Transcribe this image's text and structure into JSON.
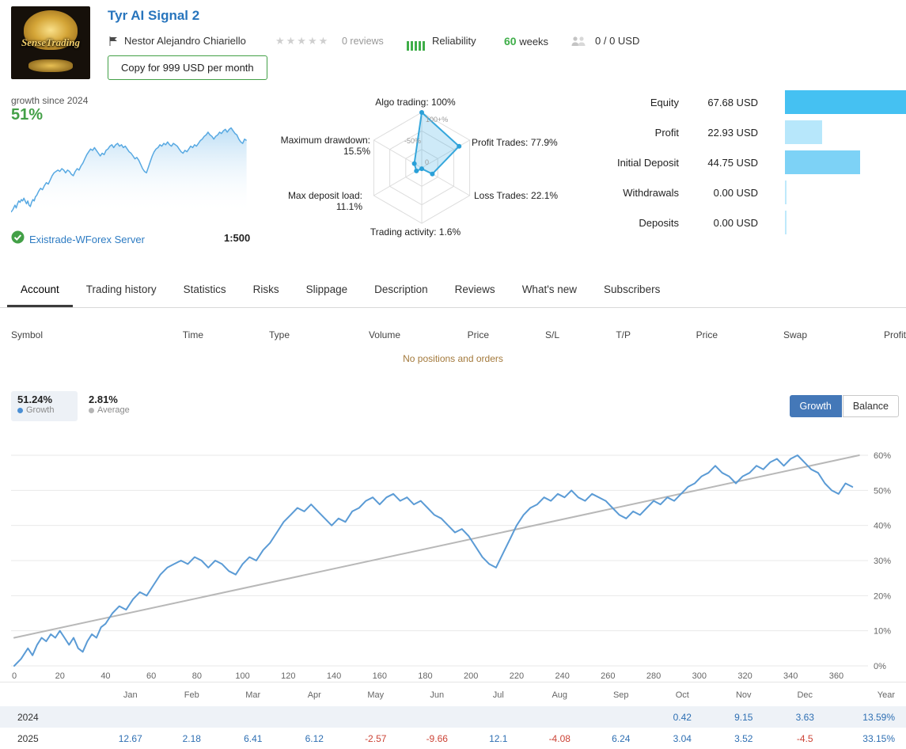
{
  "header": {
    "avatar_text": "SenseTrading",
    "title": "Tyr AI Signal 2",
    "author": "Nestor Alejandro Chiariello",
    "reviews": "0 reviews",
    "reliability_label": "Reliability",
    "weeks_value": "60",
    "weeks_label": "weeks",
    "subscribers": "0 / 0 USD",
    "copy_button": "Copy for 999 USD per month"
  },
  "growth_panel": {
    "caption": "growth since 2024",
    "value": "51%",
    "server": "Existrade-WForex Server",
    "leverage": "1:500"
  },
  "stats": {
    "rows": [
      {
        "label": "Equity",
        "value": "67.68 USD",
        "bar_pct": 100,
        "bar_color": "#45c1f2"
      },
      {
        "label": "Profit",
        "value": "22.93 USD",
        "bar_pct": 31,
        "bar_color": "#b7e7fb"
      },
      {
        "label": "Initial Deposit",
        "value": "44.75 USD",
        "bar_pct": 62,
        "bar_color": "#7dd2f6"
      },
      {
        "label": "Withdrawals",
        "value": "0.00 USD",
        "bar_pct": 1,
        "bar_color": "#bfe9fb"
      },
      {
        "label": "Deposits",
        "value": "0.00 USD",
        "bar_pct": 1,
        "bar_color": "#bfe9fb"
      }
    ]
  },
  "tabs": [
    {
      "label": "Account",
      "active": true
    },
    {
      "label": "Trading history",
      "active": false
    },
    {
      "label": "Statistics",
      "active": false
    },
    {
      "label": "Risks",
      "active": false
    },
    {
      "label": "Slippage",
      "active": false
    },
    {
      "label": "Description",
      "active": false
    },
    {
      "label": "Reviews",
      "active": false
    },
    {
      "label": "What's new",
      "active": false
    },
    {
      "label": "Subscribers",
      "active": false
    }
  ],
  "orders_table": {
    "headers": [
      "Symbol",
      "Time",
      "Type",
      "Volume",
      "Price",
      "S/L",
      "T/P",
      "Price",
      "Swap",
      "Profit"
    ],
    "empty_message": "No positions and orders"
  },
  "legend": {
    "growth_pct": "51.24%",
    "growth_label": "Growth",
    "avg_pct": "2.81%",
    "avg_label": "Average",
    "growth_btn": "Growth",
    "balance_btn": "Balance"
  },
  "chart_data": {
    "radar": {
      "type": "radar",
      "rings": [
        "100+%",
        "-50%",
        "0"
      ],
      "axes": [
        {
          "label": "Algo trading: 100%",
          "value": 100
        },
        {
          "label": "Profit Trades: 77.9%",
          "value": 77.9
        },
        {
          "label": "Loss Trades: 22.1%",
          "value": 22.1
        },
        {
          "label": "Trading activity: 1.6%",
          "value": 1.6
        },
        {
          "label": "Max deposit load: 11.1%",
          "value": 11.1
        },
        {
          "label": "Maximum drawdown:",
          "value": 15.5,
          "label2": "15.5%"
        }
      ],
      "line_color": "#35a7dc",
      "fill_color": "rgba(80,180,230,0.28)"
    },
    "main": {
      "type": "line",
      "title": "Growth",
      "unit": "%",
      "xticks": [
        0,
        20,
        40,
        60,
        80,
        100,
        120,
        140,
        160,
        180,
        200,
        220,
        240,
        260,
        280,
        300,
        320,
        340,
        360
      ],
      "yticks": [
        0,
        10,
        20,
        30,
        40,
        50,
        60
      ],
      "ylim": [
        0,
        63
      ],
      "xlim": [
        0,
        375
      ],
      "grid": true,
      "series": [
        {
          "name": "Growth",
          "color": "#5b9bd5",
          "width": 2,
          "points": [
            [
              0,
              0
            ],
            [
              3,
              2
            ],
            [
              6,
              5
            ],
            [
              8,
              3
            ],
            [
              10,
              6
            ],
            [
              12,
              8
            ],
            [
              14,
              7
            ],
            [
              16,
              9
            ],
            [
              18,
              8
            ],
            [
              20,
              10
            ],
            [
              22,
              8
            ],
            [
              24,
              6
            ],
            [
              26,
              8
            ],
            [
              28,
              5
            ],
            [
              30,
              4
            ],
            [
              32,
              7
            ],
            [
              34,
              9
            ],
            [
              36,
              8
            ],
            [
              38,
              11
            ],
            [
              40,
              12
            ],
            [
              43,
              15
            ],
            [
              46,
              17
            ],
            [
              49,
              16
            ],
            [
              52,
              19
            ],
            [
              55,
              21
            ],
            [
              58,
              20
            ],
            [
              61,
              23
            ],
            [
              64,
              26
            ],
            [
              67,
              28
            ],
            [
              70,
              29
            ],
            [
              73,
              30
            ],
            [
              76,
              29
            ],
            [
              79,
              31
            ],
            [
              82,
              30
            ],
            [
              85,
              28
            ],
            [
              88,
              30
            ],
            [
              91,
              29
            ],
            [
              94,
              27
            ],
            [
              97,
              26
            ],
            [
              100,
              29
            ],
            [
              103,
              31
            ],
            [
              106,
              30
            ],
            [
              109,
              33
            ],
            [
              112,
              35
            ],
            [
              115,
              38
            ],
            [
              118,
              41
            ],
            [
              121,
              43
            ],
            [
              124,
              45
            ],
            [
              127,
              44
            ],
            [
              130,
              46
            ],
            [
              133,
              44
            ],
            [
              136,
              42
            ],
            [
              139,
              40
            ],
            [
              142,
              42
            ],
            [
              145,
              41
            ],
            [
              148,
              44
            ],
            [
              151,
              45
            ],
            [
              154,
              47
            ],
            [
              157,
              48
            ],
            [
              160,
              46
            ],
            [
              163,
              48
            ],
            [
              166,
              49
            ],
            [
              169,
              47
            ],
            [
              172,
              48
            ],
            [
              175,
              46
            ],
            [
              178,
              47
            ],
            [
              181,
              45
            ],
            [
              184,
              43
            ],
            [
              187,
              42
            ],
            [
              190,
              40
            ],
            [
              193,
              38
            ],
            [
              196,
              39
            ],
            [
              199,
              37
            ],
            [
              202,
              34
            ],
            [
              205,
              31
            ],
            [
              208,
              29
            ],
            [
              211,
              28
            ],
            [
              214,
              32
            ],
            [
              217,
              36
            ],
            [
              220,
              40
            ],
            [
              223,
              43
            ],
            [
              226,
              45
            ],
            [
              229,
              46
            ],
            [
              232,
              48
            ],
            [
              235,
              47
            ],
            [
              238,
              49
            ],
            [
              241,
              48
            ],
            [
              244,
              50
            ],
            [
              247,
              48
            ],
            [
              250,
              47
            ],
            [
              253,
              49
            ],
            [
              256,
              48
            ],
            [
              259,
              47
            ],
            [
              262,
              45
            ],
            [
              265,
              43
            ],
            [
              268,
              42
            ],
            [
              271,
              44
            ],
            [
              274,
              43
            ],
            [
              277,
              45
            ],
            [
              280,
              47
            ],
            [
              283,
              46
            ],
            [
              286,
              48
            ],
            [
              289,
              47
            ],
            [
              292,
              49
            ],
            [
              295,
              51
            ],
            [
              298,
              52
            ],
            [
              301,
              54
            ],
            [
              304,
              55
            ],
            [
              307,
              57
            ],
            [
              310,
              55
            ],
            [
              313,
              54
            ],
            [
              316,
              52
            ],
            [
              319,
              54
            ],
            [
              322,
              55
            ],
            [
              325,
              57
            ],
            [
              328,
              56
            ],
            [
              331,
              58
            ],
            [
              334,
              59
            ],
            [
              337,
              57
            ],
            [
              340,
              59
            ],
            [
              343,
              60
            ],
            [
              346,
              58
            ],
            [
              349,
              56
            ],
            [
              352,
              55
            ],
            [
              355,
              52
            ],
            [
              358,
              50
            ],
            [
              361,
              49
            ],
            [
              364,
              52
            ],
            [
              367,
              51
            ]
          ]
        },
        {
          "name": "Average",
          "color": "#b8b8b8",
          "width": 2,
          "points": [
            [
              0,
              8
            ],
            [
              370,
              60
            ]
          ]
        }
      ]
    }
  },
  "monthly": {
    "months": [
      "Jan",
      "Feb",
      "Mar",
      "Apr",
      "May",
      "Jun",
      "Jul",
      "Aug",
      "Sep",
      "Oct",
      "Nov",
      "Dec",
      "Year"
    ],
    "rows": [
      {
        "year": "2024",
        "values": [
          "",
          "",
          "",
          "",
          "",
          "",
          "",
          "",
          "",
          "0.42",
          "9.15",
          "3.63"
        ],
        "total": "13.59%"
      },
      {
        "year": "2025",
        "values": [
          "12.67",
          "2.18",
          "6.41",
          "6.12",
          "-2.57",
          "-9.66",
          "12.1",
          "-4.08",
          "6.24",
          "3.04",
          "3.52",
          "-4.5"
        ],
        "total": "33.15%"
      }
    ]
  }
}
